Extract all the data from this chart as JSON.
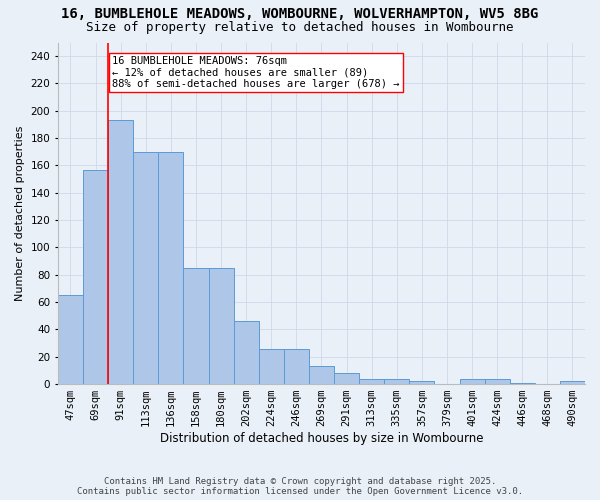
{
  "title": "16, BUMBLEHOLE MEADOWS, WOMBOURNE, WOLVERHAMPTON, WV5 8BG",
  "subtitle": "Size of property relative to detached houses in Wombourne",
  "xlabel": "Distribution of detached houses by size in Wombourne",
  "ylabel": "Number of detached properties",
  "categories": [
    "47sqm",
    "69sqm",
    "91sqm",
    "113sqm",
    "136sqm",
    "158sqm",
    "180sqm",
    "202sqm",
    "224sqm",
    "246sqm",
    "269sqm",
    "291sqm",
    "313sqm",
    "335sqm",
    "357sqm",
    "379sqm",
    "401sqm",
    "424sqm",
    "446sqm",
    "468sqm",
    "490sqm"
  ],
  "values": [
    65,
    157,
    193,
    170,
    170,
    85,
    85,
    46,
    26,
    26,
    13,
    8,
    4,
    4,
    2,
    0,
    4,
    4,
    1,
    0,
    2
  ],
  "bar_color": "#aec6e8",
  "bar_edge_color": "#5b9bd5",
  "grid_color": "#d0d8e8",
  "background_color": "#eaf0f8",
  "vline_color": "red",
  "vline_position": 1.5,
  "annotation_text": "16 BUMBLEHOLE MEADOWS: 76sqm\n← 12% of detached houses are smaller (89)\n88% of semi-detached houses are larger (678) →",
  "annotation_box_color": "white",
  "annotation_box_edge": "red",
  "ylim": [
    0,
    250
  ],
  "yticks": [
    0,
    20,
    40,
    60,
    80,
    100,
    120,
    140,
    160,
    180,
    200,
    220,
    240
  ],
  "footer": "Contains HM Land Registry data © Crown copyright and database right 2025.\nContains public sector information licensed under the Open Government Licence v3.0.",
  "title_fontsize": 10,
  "subtitle_fontsize": 9,
  "xlabel_fontsize": 8.5,
  "ylabel_fontsize": 8,
  "tick_fontsize": 7.5,
  "annotation_fontsize": 7.5,
  "footer_fontsize": 6.5
}
